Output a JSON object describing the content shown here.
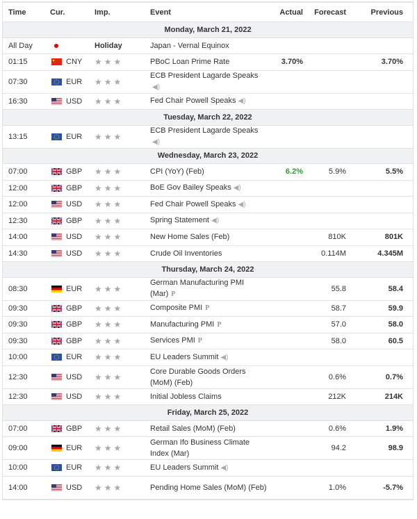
{
  "header": {
    "time": "Time",
    "cur": "Cur.",
    "imp": "Imp.",
    "event": "Event",
    "actual": "Actual",
    "forecast": "Forecast",
    "previous": "Previous"
  },
  "colors": {
    "green": "#2a9e2a",
    "band": "#f0f1f3"
  },
  "days": [
    {
      "label": "Monday, March 21, 2022",
      "events": [
        {
          "time": "All Day",
          "flag": "jp",
          "cur": "",
          "holiday": "Holiday",
          "event": "Japan - Vernal Equinox",
          "actual": "",
          "forecast": "",
          "previous": "",
          "tall": false
        },
        {
          "time": "01:15",
          "flag": "cn",
          "cur": "CNY",
          "event": "PBoC Loan Prime Rate",
          "actual": "3.70%",
          "forecast": "",
          "previous": "3.70%",
          "actual_bold": true,
          "prev_bold": true,
          "tall": false
        },
        {
          "time": "07:30",
          "flag": "eu",
          "cur": "EUR",
          "event": "ECB President Lagarde Speaks",
          "speaker": true,
          "actual": "",
          "forecast": "",
          "previous": "",
          "tall": true,
          "speaker_newline": true
        },
        {
          "time": "16:30",
          "flag": "us",
          "cur": "USD",
          "event": "Fed Chair Powell Speaks",
          "speaker": true,
          "actual": "",
          "forecast": "",
          "previous": "",
          "tall": false
        }
      ]
    },
    {
      "label": "Tuesday, March 22, 2022",
      "events": [
        {
          "time": "13:15",
          "flag": "eu",
          "cur": "EUR",
          "event": "ECB President Lagarde Speaks",
          "speaker": true,
          "speaker_newline": true,
          "actual": "",
          "forecast": "",
          "previous": "",
          "tall": true
        }
      ]
    },
    {
      "label": "Wednesday, March 23, 2022",
      "events": [
        {
          "time": "07:00",
          "flag": "gb",
          "cur": "GBP",
          "event": "CPI (YoY) (Feb)",
          "actual": "6.2%",
          "actual_green": true,
          "forecast": "5.9%",
          "previous": "5.5%",
          "prev_bold": true,
          "tall": false
        },
        {
          "time": "12:00",
          "flag": "gb",
          "cur": "GBP",
          "event": "BoE Gov Bailey Speaks",
          "speaker": true,
          "actual": "",
          "forecast": "",
          "previous": "",
          "tall": false
        },
        {
          "time": "12:00",
          "flag": "us",
          "cur": "USD",
          "event": "Fed Chair Powell Speaks",
          "speaker": true,
          "actual": "",
          "forecast": "",
          "previous": "",
          "tall": false
        },
        {
          "time": "12:30",
          "flag": "gb",
          "cur": "GBP",
          "event": "Spring Statement",
          "speaker": true,
          "actual": "",
          "forecast": "",
          "previous": "",
          "tall": false
        },
        {
          "time": "14:00",
          "flag": "us",
          "cur": "USD",
          "event": "New Home Sales (Feb)",
          "actual": "",
          "forecast": "810K",
          "previous": "801K",
          "prev_bold": true,
          "tall": false
        },
        {
          "time": "14:30",
          "flag": "us",
          "cur": "USD",
          "event": "Crude Oil Inventories",
          "actual": "",
          "forecast": "0.114M",
          "previous": "4.345M",
          "prev_bold": true,
          "tall": false
        }
      ]
    },
    {
      "label": "Thursday, March 24, 2022",
      "events": [
        {
          "time": "08:30",
          "flag": "de",
          "cur": "EUR",
          "event": "German Manufacturing PMI (Mar)",
          "prelim": true,
          "actual": "",
          "forecast": "55.8",
          "previous": "58.4",
          "prev_bold": true,
          "tall": true
        },
        {
          "time": "09:30",
          "flag": "gb",
          "cur": "GBP",
          "event": "Composite PMI",
          "prelim": true,
          "actual": "",
          "forecast": "58.7",
          "previous": "59.9",
          "prev_bold": true,
          "tall": false
        },
        {
          "time": "09:30",
          "flag": "gb",
          "cur": "GBP",
          "event": "Manufacturing PMI",
          "prelim": true,
          "actual": "",
          "forecast": "57.0",
          "previous": "58.0",
          "prev_bold": true,
          "tall": false
        },
        {
          "time": "09:30",
          "flag": "gb",
          "cur": "GBP",
          "event": "Services PMI",
          "prelim": true,
          "actual": "",
          "forecast": "58.0",
          "previous": "60.5",
          "prev_bold": true,
          "tall": false
        },
        {
          "time": "10:00",
          "flag": "eu",
          "cur": "EUR",
          "event": "EU Leaders Summit",
          "speaker": true,
          "actual": "",
          "forecast": "",
          "previous": "",
          "tall": false
        },
        {
          "time": "12:30",
          "flag": "us",
          "cur": "USD",
          "event": "Core Durable Goods Orders (MoM) (Feb)",
          "actual": "",
          "forecast": "0.6%",
          "previous": "0.7%",
          "prev_bold": true,
          "tall": true
        },
        {
          "time": "12:30",
          "flag": "us",
          "cur": "USD",
          "event": "Initial Jobless Claims",
          "actual": "",
          "forecast": "212K",
          "previous": "214K",
          "prev_bold": true,
          "tall": false
        }
      ]
    },
    {
      "label": "Friday, March 25, 2022",
      "events": [
        {
          "time": "07:00",
          "flag": "gb",
          "cur": "GBP",
          "event": "Retail Sales (MoM) (Feb)",
          "actual": "",
          "forecast": "0.6%",
          "previous": "1.9%",
          "prev_bold": true,
          "tall": false
        },
        {
          "time": "09:00",
          "flag": "de",
          "cur": "EUR",
          "event": "German Ifo Business Climate Index (Mar)",
          "actual": "",
          "forecast": "94.2",
          "previous": "98.9",
          "prev_bold": true,
          "tall": true
        },
        {
          "time": "10:00",
          "flag": "eu",
          "cur": "EUR",
          "event": "EU Leaders Summit",
          "speaker": true,
          "actual": "",
          "forecast": "",
          "previous": "",
          "tall": false
        },
        {
          "time": "14:00",
          "flag": "us",
          "cur": "USD",
          "event": "Pending Home Sales (MoM) (Feb)",
          "actual": "",
          "forecast": "1.0%",
          "previous": "-5.7%",
          "prev_bold": true,
          "tall": true
        }
      ]
    }
  ],
  "icons": {
    "star": "star-icon",
    "speaker": "speaker-icon",
    "prelim": "preliminary-icon"
  }
}
